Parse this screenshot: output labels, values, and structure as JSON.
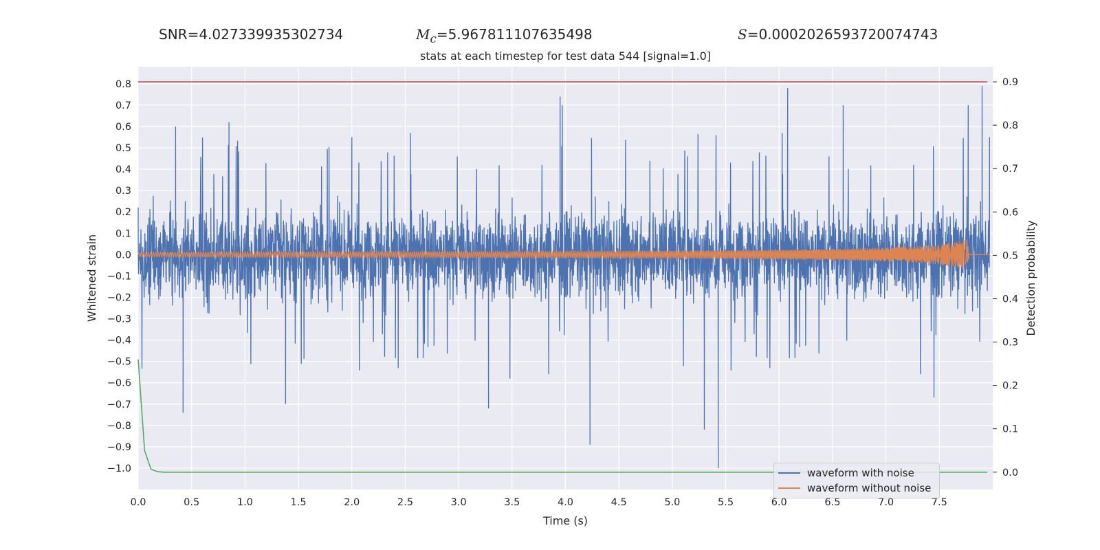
{
  "stats": {
    "snr": {
      "label": "SNR",
      "value": "=4.027339935302734"
    },
    "mc": {
      "symbol": "M",
      "subscript": "c",
      "value": "=5.967811107635498"
    },
    "s": {
      "symbol": "S",
      "value": "=0.0002026593720074743"
    }
  },
  "chart_data": {
    "type": "line",
    "title": "stats at each timestep for test data 544 [signal=1.0]",
    "xlabel": "Time (s)",
    "ylabel": "Whitened strain",
    "y2label": "Detection probability",
    "xlim": [
      0.0,
      8.0
    ],
    "ylim": [
      -1.1,
      0.88
    ],
    "y2lim": [
      -0.04,
      0.935
    ],
    "xticks": [
      "0.0",
      "0.5",
      "1.0",
      "1.5",
      "2.0",
      "2.5",
      "3.0",
      "3.5",
      "4.0",
      "4.5",
      "5.0",
      "5.5",
      "6.0",
      "6.5",
      "7.0",
      "7.5"
    ],
    "yticks": [
      "0.8",
      "0.7",
      "0.6",
      "0.5",
      "0.4",
      "0.3",
      "0.2",
      "0.1",
      "0.0",
      "−0.1",
      "−0.2",
      "−0.3",
      "−0.4",
      "−0.5",
      "−0.6",
      "−0.7",
      "−0.8",
      "−0.9",
      "−1.0"
    ],
    "y2ticks": [
      "0.9",
      "0.8",
      "0.7",
      "0.6",
      "0.5",
      "0.4",
      "0.3",
      "0.2",
      "0.1",
      "0.0"
    ],
    "grid": true,
    "legend_position": "lower-right",
    "colors": {
      "noise": "#4c72b0",
      "clean": "#dd8452",
      "probability": "#55a868",
      "threshold": "#c44e52",
      "background": "#eaeaf2"
    },
    "series": [
      {
        "name": "waveform with noise",
        "axis": "left",
        "note": "dense noisy strain, envelope peaks",
        "x": [
          0.0,
          0.35,
          0.42,
          0.85,
          1.38,
          2.0,
          3.28,
          3.48,
          3.95,
          3.97,
          4.23,
          5.3,
          5.43,
          6.08,
          6.6,
          7.45,
          7.77,
          7.9,
          7.97
        ],
        "y": [
          0.22,
          0.6,
          -0.74,
          0.62,
          -0.7,
          0.55,
          -0.72,
          -0.58,
          0.74,
          0.7,
          -0.89,
          -0.82,
          -1.0,
          0.78,
          0.7,
          -0.67,
          0.7,
          0.79,
          0.55
        ]
      },
      {
        "name": "waveform without noise",
        "axis": "left",
        "x": [
          0.0,
          1.0,
          2.0,
          3.0,
          4.0,
          5.0,
          6.0,
          6.5,
          7.0,
          7.5,
          7.7,
          7.76,
          7.78
        ],
        "y": [
          0.01,
          0.012,
          0.013,
          0.014,
          0.016,
          0.018,
          0.022,
          0.026,
          0.032,
          0.045,
          0.065,
          0.08,
          0.0
        ]
      },
      {
        "axis": "right",
        "x": [
          0.0,
          0.06,
          0.12,
          0.18,
          0.24,
          0.3,
          1.0,
          4.0,
          8.0
        ],
        "y": [
          0.26,
          0.05,
          0.007,
          0.001,
          0.0,
          0.0,
          0.0,
          0.0,
          0.0
        ]
      },
      {
        "axis": "right",
        "x": [
          0.0,
          8.0
        ],
        "y": [
          0.9,
          0.9
        ]
      }
    ]
  },
  "legend": {
    "items": [
      {
        "label": "waveform with noise",
        "color": "#4c72b0"
      },
      {
        "label": "waveform without noise",
        "color": "#dd8452"
      }
    ]
  }
}
